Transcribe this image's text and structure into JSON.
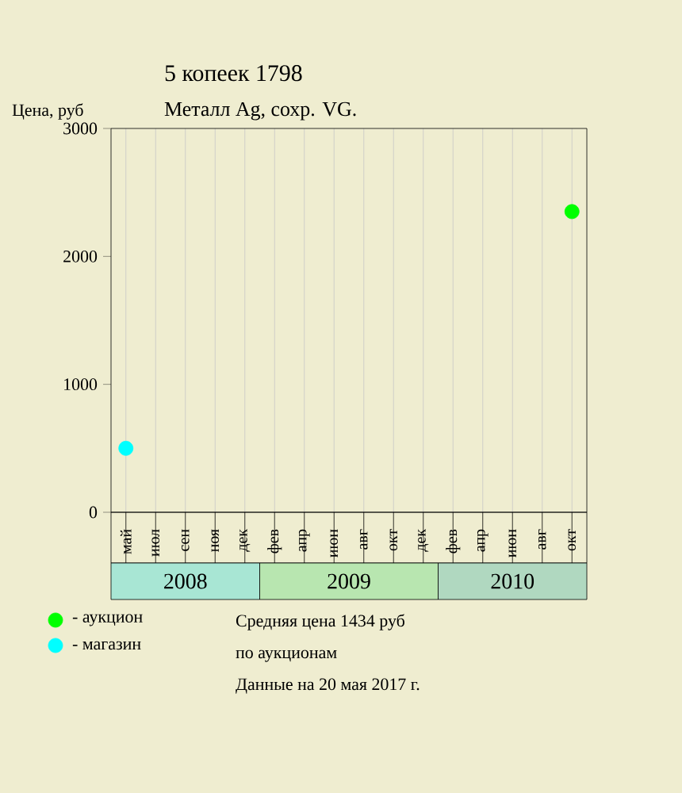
{
  "chart_data": {
    "type": "scatter",
    "title": "5 копеек 1798",
    "subtitle": "Металл Ag, сохр. VG.",
    "ylabel": "Цена, руб",
    "categories": [
      "май",
      "июл",
      "сен",
      "ноя",
      "дек",
      "фев",
      "апр",
      "июн",
      "авг",
      "окт",
      "дек",
      "фев",
      "апр",
      "июн",
      "авг",
      "окт"
    ],
    "series": [
      {
        "name": "- аукцион",
        "color": "#00ff00",
        "values": [
          null,
          null,
          null,
          null,
          null,
          null,
          null,
          null,
          null,
          null,
          null,
          null,
          null,
          null,
          null,
          2350
        ]
      },
      {
        "name": "- магазин",
        "color": "#00ffff",
        "values": [
          500,
          null,
          null,
          null,
          null,
          null,
          null,
          null,
          null,
          null,
          null,
          null,
          null,
          null,
          null,
          null
        ]
      }
    ],
    "ylim": [
      0,
      3000
    ],
    "yticks": [
      0,
      1000,
      2000,
      3000
    ],
    "grid": "x",
    "legend": "bottom left",
    "marker": "circle",
    "annotations": [
      "Средняя цена 1434 руб",
      "по аукционам",
      "Данные на 20 мая 2017 г.",
      "2008",
      "2009",
      "2010"
    ]
  }
}
